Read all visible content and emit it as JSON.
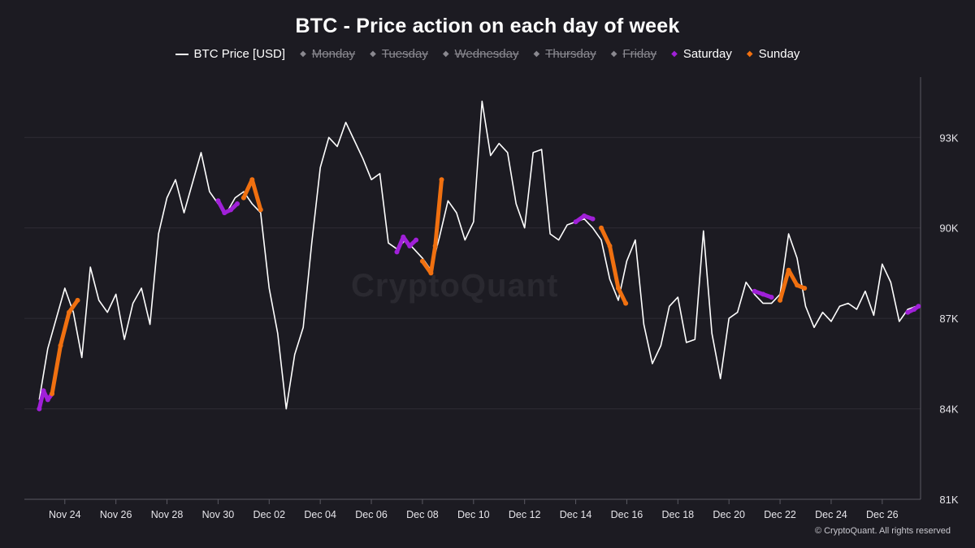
{
  "watermark": "CryptoQuant",
  "copyright": "© CryptoQuant. All rights reserved",
  "legend": [
    {
      "label": "BTC Price [USD]",
      "marker": "line",
      "color": "#ffffff",
      "hidden": false
    },
    {
      "label": "Monday",
      "marker": "◆",
      "color": "#8a8990",
      "hidden": true
    },
    {
      "label": "Tuesday",
      "marker": "◆",
      "color": "#8a8990",
      "hidden": true
    },
    {
      "label": "Wednesday",
      "marker": "◆",
      "color": "#8a8990",
      "hidden": true
    },
    {
      "label": "Thursday",
      "marker": "◆",
      "color": "#8a8990",
      "hidden": true
    },
    {
      "label": "Friday",
      "marker": "◆",
      "color": "#8a8990",
      "hidden": true
    },
    {
      "label": "Saturday",
      "marker": "◆",
      "color": "#a020d8",
      "hidden": false
    },
    {
      "label": "Sunday",
      "marker": "◆",
      "color": "#f07010",
      "hidden": false
    }
  ],
  "chart_data": {
    "type": "line",
    "title": "BTC - Price action on each day of week",
    "xlabel": "",
    "ylabel": "",
    "y_ticks": [
      "81K",
      "84K",
      "87K",
      "90K",
      "93K"
    ],
    "y_tick_values": [
      81000,
      84000,
      87000,
      90000,
      93000
    ],
    "ylim": [
      81000,
      95000
    ],
    "xlim": [
      "2024-11-22T10:00",
      "2024-12-27T12:00"
    ],
    "x_ticks": [
      "Nov 24",
      "Nov 26",
      "Nov 28",
      "Nov 30",
      "Dec 02",
      "Dec 04",
      "Dec 06",
      "Dec 08",
      "Dec 10",
      "Dec 12",
      "Dec 14",
      "Dec 16",
      "Dec 18",
      "Dec 20",
      "Dec 22",
      "Dec 24",
      "Dec 26"
    ],
    "x_tick_values": [
      "2024-11-24",
      "2024-11-26",
      "2024-11-28",
      "2024-11-30",
      "2024-12-02",
      "2024-12-04",
      "2024-12-06",
      "2024-12-08",
      "2024-12-10",
      "2024-12-12",
      "2024-12-14",
      "2024-12-16",
      "2024-12-18",
      "2024-12-20",
      "2024-12-22",
      "2024-12-24",
      "2024-12-26"
    ],
    "grid": true,
    "legend_position": "top-center",
    "series": [
      {
        "name": "BTC Price [USD]",
        "color": "#ffffff",
        "points": [
          [
            "2024-11-23T00:00",
            84300
          ],
          [
            "2024-11-23T08:00",
            86000
          ],
          [
            "2024-11-23T16:00",
            87000
          ],
          [
            "2024-11-24T00:00",
            88000
          ],
          [
            "2024-11-24T08:00",
            87200
          ],
          [
            "2024-11-24T16:00",
            85700
          ],
          [
            "2024-11-25T00:00",
            88700
          ],
          [
            "2024-11-25T08:00",
            87600
          ],
          [
            "2024-11-25T16:00",
            87200
          ],
          [
            "2024-11-26T00:00",
            87800
          ],
          [
            "2024-11-26T08:00",
            86300
          ],
          [
            "2024-11-26T16:00",
            87500
          ],
          [
            "2024-11-27T00:00",
            88000
          ],
          [
            "2024-11-27T08:00",
            86800
          ],
          [
            "2024-11-27T16:00",
            89800
          ],
          [
            "2024-11-28T00:00",
            91000
          ],
          [
            "2024-11-28T08:00",
            91600
          ],
          [
            "2024-11-28T16:00",
            90500
          ],
          [
            "2024-11-29T00:00",
            91500
          ],
          [
            "2024-11-29T08:00",
            92500
          ],
          [
            "2024-11-29T16:00",
            91200
          ],
          [
            "2024-11-30T00:00",
            90800
          ],
          [
            "2024-11-30T08:00",
            90500
          ],
          [
            "2024-11-30T16:00",
            91000
          ],
          [
            "2024-12-01T00:00",
            91200
          ],
          [
            "2024-12-01T08:00",
            90800
          ],
          [
            "2024-12-01T16:00",
            90500
          ],
          [
            "2024-12-02T00:00",
            88000
          ],
          [
            "2024-12-02T08:00",
            86500
          ],
          [
            "2024-12-02T16:00",
            84000
          ],
          [
            "2024-12-03T00:00",
            85800
          ],
          [
            "2024-12-03T08:00",
            86700
          ],
          [
            "2024-12-03T16:00",
            89500
          ],
          [
            "2024-12-04T00:00",
            92000
          ],
          [
            "2024-12-04T08:00",
            93000
          ],
          [
            "2024-12-04T16:00",
            92700
          ],
          [
            "2024-12-05T00:00",
            93500
          ],
          [
            "2024-12-05T08:00",
            92900
          ],
          [
            "2024-12-05T16:00",
            92300
          ],
          [
            "2024-12-06T00:00",
            91600
          ],
          [
            "2024-12-06T08:00",
            91800
          ],
          [
            "2024-12-06T16:00",
            89500
          ],
          [
            "2024-12-07T00:00",
            89300
          ],
          [
            "2024-12-07T08:00",
            89600
          ],
          [
            "2024-12-07T16:00",
            89300
          ],
          [
            "2024-12-08T00:00",
            89000
          ],
          [
            "2024-12-08T08:00",
            88600
          ],
          [
            "2024-12-08T16:00",
            89700
          ],
          [
            "2024-12-09T00:00",
            90900
          ],
          [
            "2024-12-09T08:00",
            90500
          ],
          [
            "2024-12-09T16:00",
            89600
          ],
          [
            "2024-12-10T00:00",
            90200
          ],
          [
            "2024-12-10T08:00",
            94200
          ],
          [
            "2024-12-10T16:00",
            92400
          ],
          [
            "2024-12-11T00:00",
            92800
          ],
          [
            "2024-12-11T08:00",
            92500
          ],
          [
            "2024-12-11T16:00",
            90800
          ],
          [
            "2024-12-12T00:00",
            90000
          ],
          [
            "2024-12-12T08:00",
            92500
          ],
          [
            "2024-12-12T16:00",
            92600
          ],
          [
            "2024-12-13T00:00",
            89800
          ],
          [
            "2024-12-13T08:00",
            89600
          ],
          [
            "2024-12-13T16:00",
            90100
          ],
          [
            "2024-12-14T00:00",
            90200
          ],
          [
            "2024-12-14T08:00",
            90300
          ],
          [
            "2024-12-14T16:00",
            90000
          ],
          [
            "2024-12-15T00:00",
            89600
          ],
          [
            "2024-12-15T08:00",
            88300
          ],
          [
            "2024-12-15T16:00",
            87600
          ],
          [
            "2024-12-16T00:00",
            88900
          ],
          [
            "2024-12-16T08:00",
            89600
          ],
          [
            "2024-12-16T16:00",
            86800
          ],
          [
            "2024-12-17T00:00",
            85500
          ],
          [
            "2024-12-17T08:00",
            86100
          ],
          [
            "2024-12-17T16:00",
            87400
          ],
          [
            "2024-12-18T00:00",
            87700
          ],
          [
            "2024-12-18T08:00",
            86200
          ],
          [
            "2024-12-18T16:00",
            86300
          ],
          [
            "2024-12-19T00:00",
            89900
          ],
          [
            "2024-12-19T08:00",
            86500
          ],
          [
            "2024-12-19T16:00",
            85000
          ],
          [
            "2024-12-20T00:00",
            87000
          ],
          [
            "2024-12-20T08:00",
            87200
          ],
          [
            "2024-12-20T16:00",
            88200
          ],
          [
            "2024-12-21T00:00",
            87800
          ],
          [
            "2024-12-21T08:00",
            87500
          ],
          [
            "2024-12-21T16:00",
            87500
          ],
          [
            "2024-12-22T00:00",
            87800
          ],
          [
            "2024-12-22T08:00",
            89800
          ],
          [
            "2024-12-22T16:00",
            89000
          ],
          [
            "2024-12-23T00:00",
            87400
          ],
          [
            "2024-12-23T08:00",
            86700
          ],
          [
            "2024-12-23T16:00",
            87200
          ],
          [
            "2024-12-24T00:00",
            86900
          ],
          [
            "2024-12-24T08:00",
            87400
          ],
          [
            "2024-12-24T16:00",
            87500
          ],
          [
            "2024-12-25T00:00",
            87300
          ],
          [
            "2024-12-25T08:00",
            87900
          ],
          [
            "2024-12-25T16:00",
            87100
          ],
          [
            "2024-12-26T00:00",
            88800
          ],
          [
            "2024-12-26T08:00",
            88200
          ],
          [
            "2024-12-26T16:00",
            86900
          ],
          [
            "2024-12-27T00:00",
            87300
          ],
          [
            "2024-12-27T08:00",
            87400
          ]
        ]
      },
      {
        "name": "Saturday",
        "color": "#a020d8",
        "segments": [
          [
            [
              "2024-11-23T00:00",
              84000
            ],
            [
              "2024-11-23T04:00",
              84600
            ],
            [
              "2024-11-23T08:00",
              84300
            ],
            [
              "2024-11-23T12:00",
              84500
            ]
          ],
          [
            [
              "2024-11-30T00:00",
              90900
            ],
            [
              "2024-11-30T06:00",
              90500
            ],
            [
              "2024-11-30T12:00",
              90600
            ],
            [
              "2024-11-30T18:00",
              90800
            ]
          ],
          [
            [
              "2024-12-07T00:00",
              89200
            ],
            [
              "2024-12-07T06:00",
              89700
            ],
            [
              "2024-12-07T12:00",
              89400
            ],
            [
              "2024-12-07T18:00",
              89600
            ]
          ],
          [
            [
              "2024-12-14T00:00",
              90200
            ],
            [
              "2024-12-14T08:00",
              90400
            ],
            [
              "2024-12-14T16:00",
              90300
            ]
          ],
          [
            [
              "2024-12-21T00:00",
              87900
            ],
            [
              "2024-12-21T08:00",
              87800
            ],
            [
              "2024-12-21T16:00",
              87700
            ]
          ],
          [
            [
              "2024-12-27T00:00",
              87200
            ],
            [
              "2024-12-27T06:00",
              87300
            ],
            [
              "2024-12-27T10:00",
              87400
            ]
          ]
        ]
      },
      {
        "name": "Sunday",
        "color": "#f07010",
        "segments": [
          [
            [
              "2024-11-23T12:00",
              84500
            ],
            [
              "2024-11-23T20:00",
              86100
            ],
            [
              "2024-11-24T04:00",
              87200
            ],
            [
              "2024-11-24T12:00",
              87600
            ]
          ],
          [
            [
              "2024-12-01T00:00",
              91000
            ],
            [
              "2024-12-01T08:00",
              91600
            ],
            [
              "2024-12-01T16:00",
              90600
            ]
          ],
          [
            [
              "2024-12-08T00:00",
              88900
            ],
            [
              "2024-12-08T08:00",
              88500
            ],
            [
              "2024-12-08T12:00",
              89400
            ],
            [
              "2024-12-08T18:00",
              91600
            ]
          ],
          [
            [
              "2024-12-15T00:00",
              90000
            ],
            [
              "2024-12-15T08:00",
              89400
            ],
            [
              "2024-12-15T16:00",
              88000
            ],
            [
              "2024-12-15T23:00",
              87500
            ]
          ],
          [
            [
              "2024-12-22T00:00",
              87600
            ],
            [
              "2024-12-22T08:00",
              88600
            ],
            [
              "2024-12-22T16:00",
              88100
            ],
            [
              "2024-12-22T23:00",
              88000
            ]
          ]
        ]
      }
    ]
  }
}
